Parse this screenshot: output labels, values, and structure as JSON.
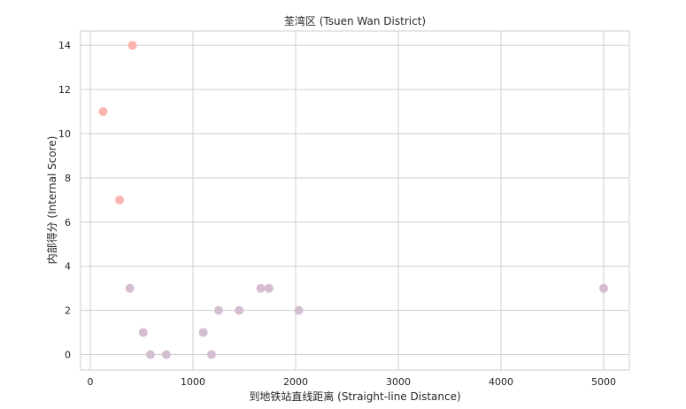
{
  "chart_data": {
    "type": "scatter",
    "title": "荃湾区 (Tsuen Wan District)",
    "xlabel": "到地铁站直线距离 (Straight-line Distance)",
    "ylabel": "内部得分 (Internal Score)",
    "xlim": [
      -95,
      5250
    ],
    "ylim": [
      -0.7,
      14.65
    ],
    "x_ticks": [
      "0",
      "1000",
      "2000",
      "3000",
      "4000",
      "5000"
    ],
    "x_tick_values": [
      0,
      1000,
      2000,
      3000,
      4000,
      5000
    ],
    "y_ticks": [
      "0",
      "2",
      "4",
      "6",
      "8",
      "10",
      "12",
      "14"
    ],
    "y_tick_values": [
      0,
      2,
      4,
      6,
      8,
      10,
      12,
      14
    ],
    "grid": true,
    "series": [
      {
        "color": "#fbb4ae",
        "points": [
          {
            "x": 125,
            "y": 11
          },
          {
            "x": 285,
            "y": 7
          },
          {
            "x": 410,
            "y": 14
          }
        ]
      },
      {
        "color": "#d6bed2",
        "points": [
          {
            "x": 385,
            "y": 3
          },
          {
            "x": 515,
            "y": 1
          },
          {
            "x": 585,
            "y": 0
          },
          {
            "x": 740,
            "y": 0
          },
          {
            "x": 1100,
            "y": 1
          },
          {
            "x": 1180,
            "y": 0
          },
          {
            "x": 1250,
            "y": 2
          },
          {
            "x": 1450,
            "y": 2
          },
          {
            "x": 1660,
            "y": 3
          },
          {
            "x": 1740,
            "y": 3
          },
          {
            "x": 2030,
            "y": 2
          },
          {
            "x": 5000,
            "y": 3
          }
        ]
      }
    ]
  }
}
